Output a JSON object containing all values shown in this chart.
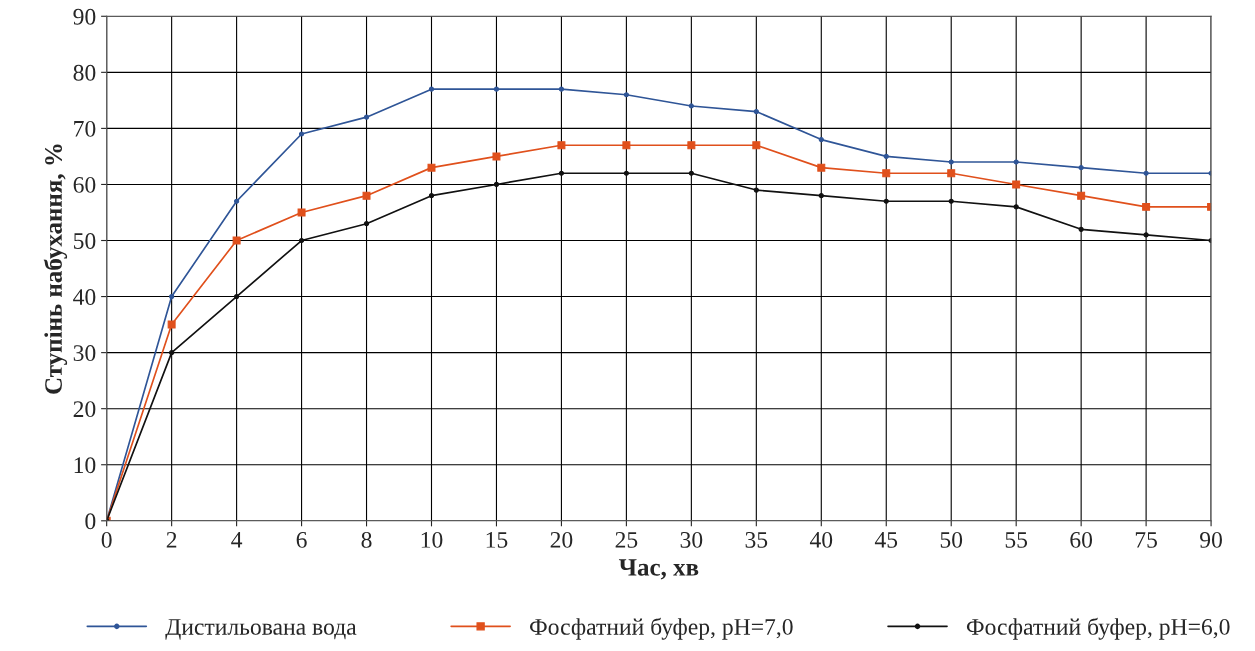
{
  "chart_data": {
    "type": "line",
    "xlabel": "Час, хв",
    "ylabel": "Ступінь набухання, %",
    "categories": [
      "0",
      "2",
      "4",
      "6",
      "8",
      "10",
      "15",
      "20",
      "25",
      "30",
      "35",
      "40",
      "45",
      "50",
      "55",
      "60",
      "75",
      "90"
    ],
    "series": [
      {
        "name": "Дистильована вода",
        "color": "#2f5597",
        "marker": "circle",
        "values": [
          0,
          40,
          57,
          69,
          72,
          77,
          77,
          77,
          76,
          74,
          73,
          68,
          65,
          64,
          64,
          63,
          62,
          62
        ]
      },
      {
        "name": "Фосфатний буфер, pH=7,0",
        "color": "#e0501c",
        "marker": "square",
        "values": [
          0,
          35,
          50,
          55,
          58,
          63,
          65,
          67,
          67,
          67,
          67,
          63,
          62,
          62,
          60,
          58,
          56,
          56
        ]
      },
      {
        "name": "Фосфатний буфер, pH=6,0",
        "color": "#111111",
        "marker": "circle",
        "values": [
          0,
          30,
          40,
          50,
          53,
          58,
          60,
          62,
          62,
          62,
          59,
          58,
          57,
          57,
          56,
          52,
          51,
          50
        ]
      }
    ],
    "ylim": [
      0,
      90
    ],
    "yticks": [
      0,
      10,
      20,
      30,
      40,
      50,
      60,
      70,
      80,
      90
    ],
    "grid": true,
    "legend": "bottom",
    "line_style": "solid"
  }
}
